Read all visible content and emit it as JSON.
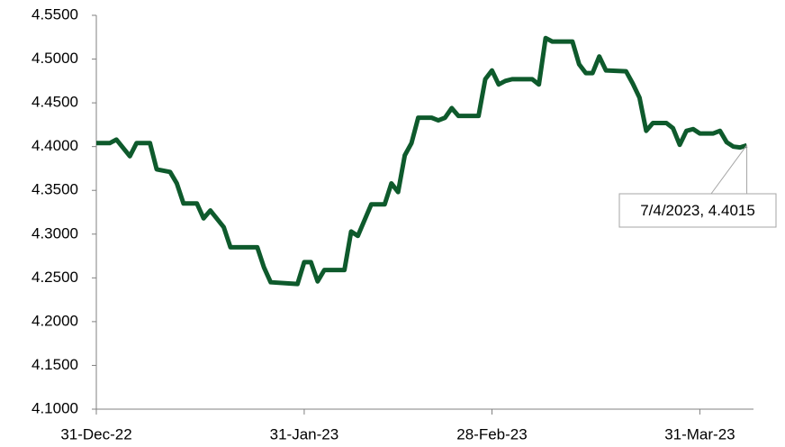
{
  "chart_data": {
    "type": "line",
    "x": [
      "2022-12-31",
      "2023-01-02",
      "2023-01-03",
      "2023-01-05",
      "2023-01-06",
      "2023-01-08",
      "2023-01-09",
      "2023-01-11",
      "2023-01-12",
      "2023-01-13",
      "2023-01-15",
      "2023-01-16",
      "2023-01-17",
      "2023-01-19",
      "2023-01-20",
      "2023-01-24",
      "2023-01-25",
      "2023-01-26",
      "2023-01-30",
      "2023-01-31",
      "2023-02-01",
      "2023-02-02",
      "2023-02-03",
      "2023-02-06",
      "2023-02-07",
      "2023-02-08",
      "2023-02-10",
      "2023-02-12",
      "2023-02-13",
      "2023-02-14",
      "2023-02-15",
      "2023-02-16",
      "2023-02-17",
      "2023-02-19",
      "2023-02-20",
      "2023-02-21",
      "2023-02-22",
      "2023-02-23",
      "2023-02-26",
      "2023-02-27",
      "2023-02-28",
      "2023-03-01",
      "2023-03-02",
      "2023-03-03",
      "2023-03-06",
      "2023-03-07",
      "2023-03-08",
      "2023-03-09",
      "2023-03-12",
      "2023-03-13",
      "2023-03-14",
      "2023-03-15",
      "2023-03-16",
      "2023-03-17",
      "2023-03-20",
      "2023-03-21",
      "2023-03-22",
      "2023-03-23",
      "2023-03-24",
      "2023-03-26",
      "2023-03-27",
      "2023-03-28",
      "2023-03-29",
      "2023-03-30",
      "2023-03-31",
      "2023-04-02",
      "2023-04-03",
      "2023-04-04",
      "2023-04-05",
      "2023-04-06",
      "2023-04-07"
    ],
    "series": [
      {
        "color": "#0e5a2c",
        "values": [
          4.404,
          4.404,
          4.408,
          4.389,
          4.404,
          4.404,
          4.374,
          4.371,
          4.358,
          4.335,
          4.335,
          4.318,
          4.327,
          4.308,
          4.285,
          4.285,
          4.262,
          4.245,
          4.243,
          4.268,
          4.268,
          4.246,
          4.259,
          4.259,
          4.303,
          4.298,
          4.334,
          4.334,
          4.358,
          4.348,
          4.39,
          4.404,
          4.433,
          4.433,
          4.43,
          4.433,
          4.444,
          4.435,
          4.435,
          4.477,
          4.487,
          4.471,
          4.475,
          4.477,
          4.477,
          4.471,
          4.524,
          4.52,
          4.52,
          4.494,
          4.484,
          4.484,
          4.503,
          4.487,
          4.486,
          4.472,
          4.456,
          4.418,
          4.427,
          4.427,
          4.421,
          4.402,
          4.418,
          4.42,
          4.415,
          4.415,
          4.418,
          4.405,
          4.4,
          4.399,
          4.4015
        ]
      }
    ],
    "xlim": [
      "2022-12-31",
      "2023-04-08"
    ],
    "xticks": [
      {
        "value": "2022-12-31",
        "label": "31-Dec-22"
      },
      {
        "value": "2023-01-31",
        "label": "31-Jan-23"
      },
      {
        "value": "2023-02-28",
        "label": "28-Feb-23"
      },
      {
        "value": "2023-03-31",
        "label": "31-Mar-23"
      }
    ],
    "ylim": [
      4.1,
      4.55
    ],
    "yticks": [
      {
        "value": 4.1,
        "label": "4.1000"
      },
      {
        "value": 4.15,
        "label": "4.1500"
      },
      {
        "value": 4.2,
        "label": "4.2000"
      },
      {
        "value": 4.25,
        "label": "4.2500"
      },
      {
        "value": 4.3,
        "label": "4.3000"
      },
      {
        "value": 4.35,
        "label": "4.3500"
      },
      {
        "value": 4.4,
        "label": "4.4000"
      },
      {
        "value": 4.45,
        "label": "4.4500"
      },
      {
        "value": 4.5,
        "label": "4.5000"
      },
      {
        "value": 4.55,
        "label": "4.5500"
      }
    ],
    "grid": false,
    "annotations": [
      {
        "text": "7/4/2023, 4.4015"
      }
    ]
  }
}
